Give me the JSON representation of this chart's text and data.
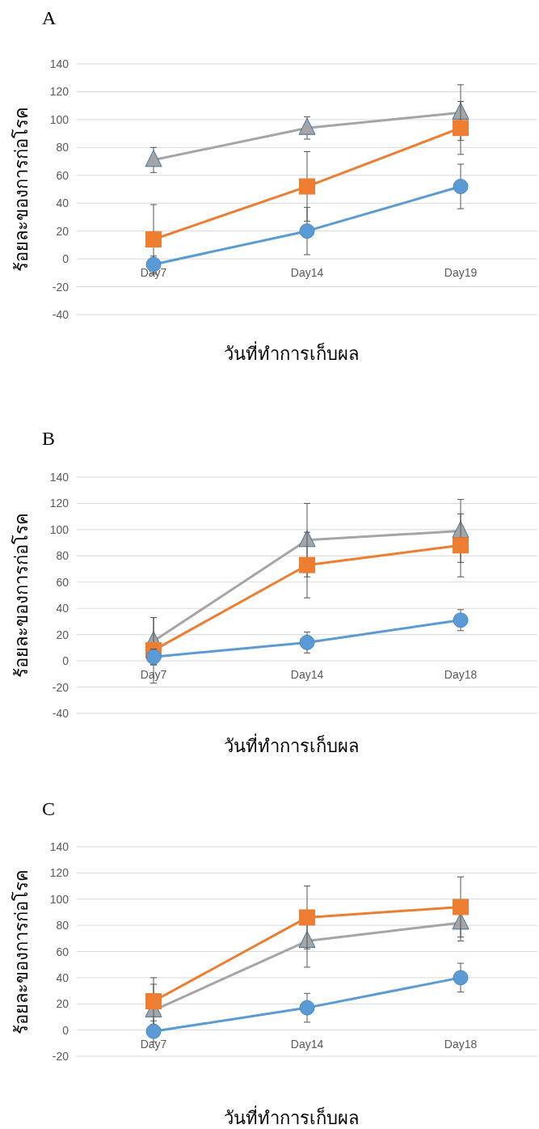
{
  "chart_data": [
    {
      "type": "line",
      "title": "A",
      "xlabel": "วันที่ทำการเก็บผล",
      "ylabel": "ร้อยละของการก่อโรค",
      "categories": [
        "Day7",
        "Day14",
        "Day19"
      ],
      "ylim": [
        -40,
        140
      ],
      "yticks": [
        -40,
        -20,
        0,
        20,
        40,
        60,
        80,
        100,
        120,
        140
      ],
      "grid": "y",
      "series": [
        {
          "color": "#5b9bd5",
          "marker": "circle",
          "values": [
            -4,
            20,
            52
          ],
          "errors": [
            6,
            17,
            16
          ]
        },
        {
          "color": "#ed7d31",
          "marker": "square",
          "values": [
            14,
            52,
            94
          ],
          "errors": [
            25,
            25,
            19
          ]
        },
        {
          "color": "#a5a5a5",
          "marker": "triangle",
          "values": [
            71,
            94,
            105
          ],
          "errors": [
            9,
            8,
            20
          ]
        }
      ]
    },
    {
      "type": "line",
      "title": "B",
      "xlabel": "วันที่ทำการเก็บผล",
      "ylabel": "ร้อยละของการก่อโรค",
      "categories": [
        "Day7",
        "Day14",
        "Day18"
      ],
      "ylim": [
        -40,
        140
      ],
      "yticks": [
        -40,
        -20,
        0,
        20,
        40,
        60,
        80,
        100,
        120,
        140
      ],
      "grid": "y",
      "series": [
        {
          "color": "#5b9bd5",
          "marker": "circle",
          "values": [
            3,
            14,
            31
          ],
          "errors": [
            6,
            8,
            8
          ]
        },
        {
          "color": "#ed7d31",
          "marker": "square",
          "values": [
            8,
            73,
            88
          ],
          "errors": [
            25,
            25,
            24
          ]
        },
        {
          "color": "#a5a5a5",
          "marker": "triangle",
          "values": [
            15,
            92,
            99
          ],
          "errors": [
            18,
            28,
            24
          ]
        }
      ]
    },
    {
      "type": "line",
      "title": "C",
      "xlabel": "วันที่ทำการเก็บผล",
      "ylabel": "ร้อยละของการก่อโรค",
      "categories": [
        "Day7",
        "Day14",
        "Day18"
      ],
      "ylim": [
        -20,
        140
      ],
      "yticks": [
        -20,
        0,
        20,
        40,
        60,
        80,
        100,
        120,
        140
      ],
      "grid": "y",
      "series": [
        {
          "color": "#5b9bd5",
          "marker": "circle",
          "values": [
            -1,
            17,
            40
          ],
          "errors": [
            8,
            11,
            11
          ]
        },
        {
          "color": "#ed7d31",
          "marker": "square",
          "values": [
            22,
            86,
            94
          ],
          "errors": [
            18,
            24,
            23
          ]
        },
        {
          "color": "#a5a5a5",
          "marker": "triangle",
          "values": [
            15,
            68,
            82
          ],
          "errors": [
            20,
            20,
            14
          ]
        }
      ]
    }
  ]
}
